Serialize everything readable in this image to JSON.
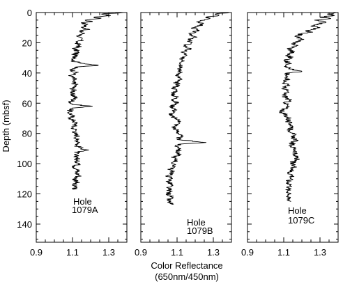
{
  "chart_data": {
    "type": "line",
    "y_axis": {
      "label": "Depth (mbsf)",
      "ticks": [
        0,
        20,
        40,
        60,
        80,
        100,
        120,
        140
      ],
      "range": [
        0,
        152
      ],
      "inverted": true,
      "minor_step": 5
    },
    "x_axis": {
      "label_line1": "Color Reflectance",
      "label_line2": "(650nm/450nm)",
      "ticks": [
        "0.9",
        "1.1",
        "1.3"
      ],
      "tick_values": [
        0.9,
        1.1,
        1.3
      ],
      "range": [
        0.9,
        1.4
      ],
      "minor_step": 0.05
    },
    "grid": false,
    "panels": [
      {
        "hole_word": "Hole",
        "hole_id": "1079A",
        "points": [
          [
            1.38,
            0
          ],
          [
            1.26,
            1
          ],
          [
            1.31,
            2
          ],
          [
            1.22,
            3
          ],
          [
            1.25,
            4
          ],
          [
            1.17,
            5
          ],
          [
            1.21,
            6
          ],
          [
            1.15,
            7
          ],
          [
            1.18,
            8
          ],
          [
            1.16,
            10
          ],
          [
            1.19,
            11
          ],
          [
            1.14,
            12
          ],
          [
            1.16,
            14
          ],
          [
            1.13,
            16
          ],
          [
            1.15,
            18
          ],
          [
            1.12,
            20
          ],
          [
            1.14,
            22
          ],
          [
            1.11,
            24
          ],
          [
            1.13,
            26
          ],
          [
            1.11,
            28
          ],
          [
            1.12,
            30
          ],
          [
            1.1,
            32
          ],
          [
            1.13,
            33
          ],
          [
            1.24,
            35
          ],
          [
            1.12,
            36
          ],
          [
            1.1,
            38
          ],
          [
            1.12,
            40
          ],
          [
            1.09,
            42
          ],
          [
            1.11,
            44
          ],
          [
            1.1,
            46
          ],
          [
            1.12,
            48
          ],
          [
            1.1,
            50
          ],
          [
            1.11,
            52
          ],
          [
            1.09,
            54
          ],
          [
            1.12,
            56
          ],
          [
            1.1,
            58
          ],
          [
            1.09,
            60
          ],
          [
            1.11,
            61
          ],
          [
            1.21,
            62
          ],
          [
            1.12,
            63
          ],
          [
            1.09,
            64
          ],
          [
            1.08,
            66
          ],
          [
            1.1,
            68
          ],
          [
            1.09,
            70
          ],
          [
            1.11,
            72
          ],
          [
            1.12,
            74
          ],
          [
            1.1,
            76
          ],
          [
            1.12,
            78
          ],
          [
            1.11,
            80
          ],
          [
            1.13,
            82
          ],
          [
            1.12,
            84
          ],
          [
            1.14,
            86
          ],
          [
            1.12,
            88
          ],
          [
            1.15,
            90
          ],
          [
            1.19,
            91
          ],
          [
            1.13,
            92
          ],
          [
            1.11,
            94
          ],
          [
            1.13,
            96
          ],
          [
            1.12,
            98
          ],
          [
            1.14,
            100
          ],
          [
            1.11,
            102
          ],
          [
            1.13,
            104
          ],
          [
            1.12,
            106
          ],
          [
            1.14,
            108
          ],
          [
            1.11,
            110
          ],
          [
            1.13,
            112
          ],
          [
            1.1,
            114
          ],
          [
            1.12,
            116
          ],
          [
            1.1,
            117
          ]
        ],
        "jitter": 0.018
      },
      {
        "hole_word": "Hole",
        "hole_id": "1079B",
        "points": [
          [
            1.39,
            0
          ],
          [
            1.31,
            1
          ],
          [
            1.33,
            2
          ],
          [
            1.26,
            3
          ],
          [
            1.28,
            4
          ],
          [
            1.22,
            6
          ],
          [
            1.24,
            8
          ],
          [
            1.19,
            10
          ],
          [
            1.21,
            12
          ],
          [
            1.17,
            14
          ],
          [
            1.2,
            16
          ],
          [
            1.16,
            18
          ],
          [
            1.18,
            20
          ],
          [
            1.14,
            22
          ],
          [
            1.17,
            24
          ],
          [
            1.13,
            26
          ],
          [
            1.15,
            28
          ],
          [
            1.12,
            30
          ],
          [
            1.14,
            32
          ],
          [
            1.12,
            34
          ],
          [
            1.13,
            36
          ],
          [
            1.11,
            38
          ],
          [
            1.12,
            40
          ],
          [
            1.1,
            42
          ],
          [
            1.12,
            44
          ],
          [
            1.09,
            46
          ],
          [
            1.11,
            48
          ],
          [
            1.08,
            50
          ],
          [
            1.1,
            52
          ],
          [
            1.07,
            54
          ],
          [
            1.1,
            56
          ],
          [
            1.08,
            58
          ],
          [
            1.1,
            60
          ],
          [
            1.07,
            62
          ],
          [
            1.09,
            64
          ],
          [
            1.08,
            66
          ],
          [
            1.06,
            68
          ],
          [
            1.09,
            70
          ],
          [
            1.12,
            72
          ],
          [
            1.1,
            74
          ],
          [
            1.08,
            76
          ],
          [
            1.1,
            78
          ],
          [
            1.11,
            80
          ],
          [
            1.12,
            82
          ],
          [
            1.1,
            84
          ],
          [
            1.26,
            86
          ],
          [
            1.12,
            87
          ],
          [
            1.09,
            88
          ],
          [
            1.12,
            90
          ],
          [
            1.1,
            92
          ],
          [
            1.11,
            94
          ],
          [
            1.08,
            96
          ],
          [
            1.1,
            98
          ],
          [
            1.07,
            100
          ],
          [
            1.09,
            102
          ],
          [
            1.06,
            104
          ],
          [
            1.08,
            106
          ],
          [
            1.05,
            108
          ],
          [
            1.07,
            110
          ],
          [
            1.05,
            112
          ],
          [
            1.07,
            114
          ],
          [
            1.05,
            116
          ],
          [
            1.06,
            118
          ],
          [
            1.05,
            120
          ],
          [
            1.07,
            122
          ],
          [
            1.05,
            124
          ],
          [
            1.06,
            126
          ],
          [
            1.07,
            127
          ]
        ],
        "jitter": 0.016
      },
      {
        "hole_word": "Hole",
        "hole_id": "1079C",
        "points": [
          [
            1.39,
            0
          ],
          [
            1.34,
            1
          ],
          [
            1.38,
            2
          ],
          [
            1.3,
            3
          ],
          [
            1.36,
            4
          ],
          [
            1.27,
            5
          ],
          [
            1.33,
            6
          ],
          [
            1.29,
            8
          ],
          [
            1.25,
            9
          ],
          [
            1.3,
            10
          ],
          [
            1.22,
            12
          ],
          [
            1.26,
            13
          ],
          [
            1.2,
            14
          ],
          [
            1.17,
            16
          ],
          [
            1.2,
            18
          ],
          [
            1.15,
            20
          ],
          [
            1.17,
            22
          ],
          [
            1.13,
            24
          ],
          [
            1.15,
            26
          ],
          [
            1.12,
            28
          ],
          [
            1.14,
            30
          ],
          [
            1.11,
            32
          ],
          [
            1.13,
            34
          ],
          [
            1.12,
            36
          ],
          [
            1.15,
            38
          ],
          [
            1.2,
            39
          ],
          [
            1.12,
            40
          ],
          [
            1.11,
            42
          ],
          [
            1.13,
            44
          ],
          [
            1.1,
            46
          ],
          [
            1.12,
            48
          ],
          [
            1.1,
            50
          ],
          [
            1.12,
            52
          ],
          [
            1.1,
            54
          ],
          [
            1.11,
            56
          ],
          [
            1.13,
            58
          ],
          [
            1.11,
            60
          ],
          [
            1.12,
            62
          ],
          [
            1.1,
            64
          ],
          [
            1.09,
            66
          ],
          [
            1.11,
            68
          ],
          [
            1.13,
            70
          ],
          [
            1.12,
            72
          ],
          [
            1.14,
            74
          ],
          [
            1.15,
            76
          ],
          [
            1.13,
            78
          ],
          [
            1.16,
            80
          ],
          [
            1.14,
            82
          ],
          [
            1.17,
            84
          ],
          [
            1.15,
            86
          ],
          [
            1.14,
            88
          ],
          [
            1.16,
            90
          ],
          [
            1.17,
            92
          ],
          [
            1.15,
            94
          ],
          [
            1.18,
            96
          ],
          [
            1.16,
            98
          ],
          [
            1.14,
            100
          ],
          [
            1.16,
            102
          ],
          [
            1.15,
            104
          ],
          [
            1.13,
            106
          ],
          [
            1.15,
            108
          ],
          [
            1.14,
            110
          ],
          [
            1.12,
            112
          ],
          [
            1.14,
            114
          ],
          [
            1.13,
            116
          ],
          [
            1.12,
            118
          ],
          [
            1.14,
            120
          ],
          [
            1.12,
            122
          ],
          [
            1.13,
            124
          ],
          [
            1.14,
            125
          ]
        ],
        "jitter": 0.018
      }
    ]
  }
}
